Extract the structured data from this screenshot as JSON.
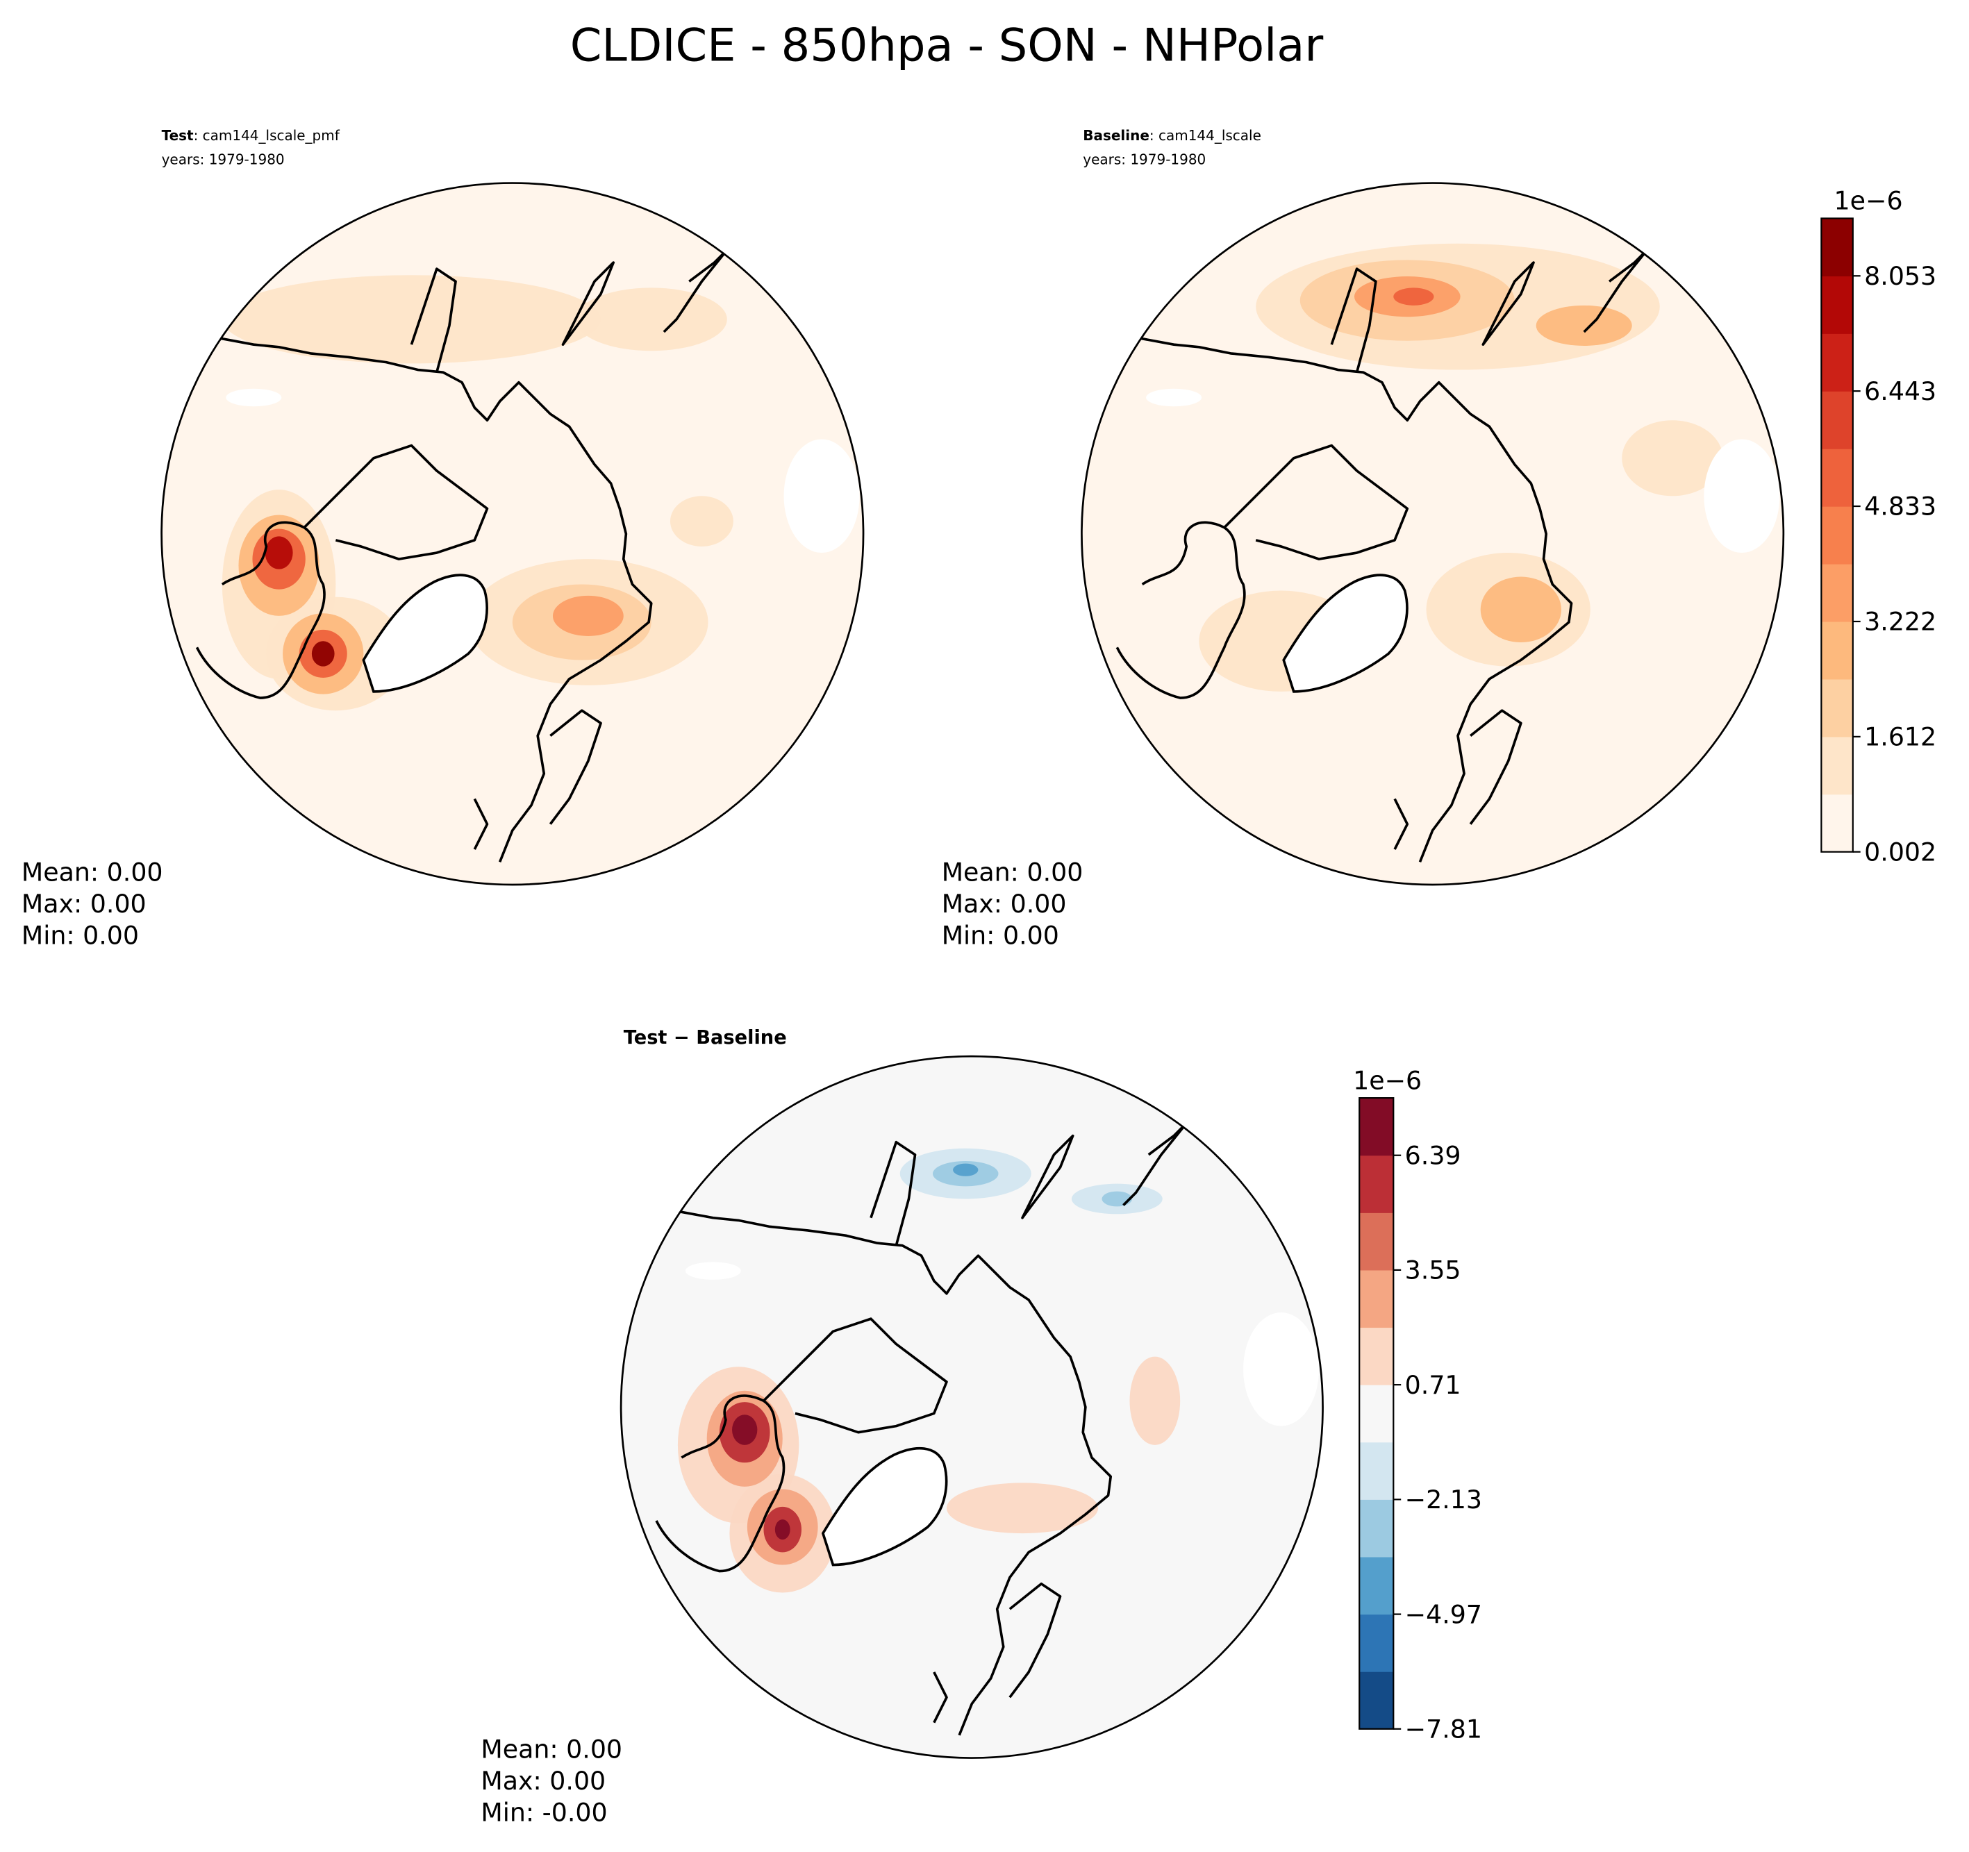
{
  "title": "CLDICE - 850hpa - SON - NHPolar",
  "panels": [
    {
      "label": "Test",
      "case": ": cam144_lscale_pmf",
      "years": "years: 1979-1980",
      "stats": [
        "Mean:  0.00",
        "Max:  0.00",
        "Min:  0.00"
      ]
    },
    {
      "label": "Baseline",
      "case": ": cam144_lscale",
      "years": "years: 1979-1980",
      "stats": [
        "Mean:  0.00",
        "Max:  0.00",
        "Min:  0.00"
      ]
    },
    {
      "label": "Test − Baseline",
      "stats": [
        "Mean:  0.00",
        "Max:  0.00",
        "Min: -0.00"
      ]
    }
  ],
  "colorbars": [
    {
      "offset": "1e−6",
      "clim": [
        0.002,
        8.857
      ],
      "ticks": [
        0.002,
        1.612,
        3.222,
        4.833,
        6.443,
        8.053
      ],
      "colors": [
        "#fff5eb",
        "#fee5c9",
        "#fdd0a2",
        "#fdb97d",
        "#fc9e66",
        "#f7804d",
        "#ee623c",
        "#de432b",
        "#cc2117",
        "#b30806",
        "#8c0000"
      ]
    },
    {
      "offset": "1e−6",
      "clim": [
        -7.81,
        7.81
      ],
      "ticks": [
        {
          "value": -7.81,
          "label": "−7.81"
        },
        {
          "value": -4.97,
          "label": "−4.97"
        },
        {
          "value": -2.13,
          "label": "−2.13"
        },
        0.71,
        3.55,
        6.39
      ],
      "colors": [
        "#144b87",
        "#2d75b5",
        "#549fcc",
        "#9ccae1",
        "#d3e6f0",
        "#f7f7f7",
        "#fbd8c4",
        "#f4a683",
        "#dc6f59",
        "#bc2f36",
        "#820c26"
      ]
    }
  ]
}
